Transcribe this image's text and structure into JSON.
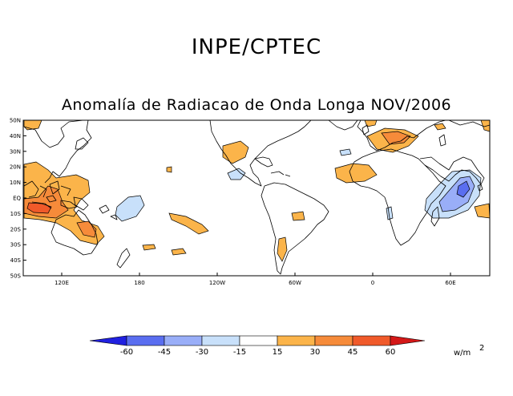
{
  "header": {
    "title": "INPE/CPTEC",
    "subtitle": "Anomalía de Radiacao de Onda Longa NOV/2006"
  },
  "map": {
    "lat_labels": [
      "50N",
      "40N",
      "30N",
      "20N",
      "10N",
      "EQ",
      "10S",
      "20S",
      "30S",
      "40S",
      "50S"
    ],
    "lon_labels": [
      "120E",
      "180",
      "120W",
      "60W",
      "0",
      "60E"
    ]
  },
  "legend": {
    "labels": [
      "-60",
      "-45",
      "-30",
      "-15",
      "15",
      "30",
      "45",
      "60"
    ],
    "colors": [
      "#2020e0",
      "#5a6ef0",
      "#99aef8",
      "#c8e0fa",
      "#ffffff",
      "#fbb44a",
      "#f68b3a",
      "#f05a2a",
      "#d41818"
    ],
    "unit": "w/m",
    "unit_sup": "2"
  }
}
